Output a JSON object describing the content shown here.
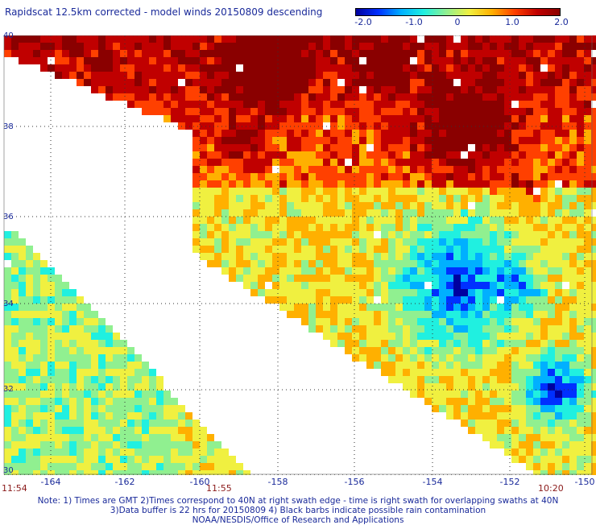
{
  "title": "Rapidscat 12.5km corrected - model winds 20150809 descending",
  "colorbar": {
    "labels": [
      "-2.0",
      "-1.0",
      "0",
      "1.0",
      "2.0"
    ],
    "colors": [
      "#0000a0",
      "#0030ff",
      "#00b0ff",
      "#20f0e0",
      "#90f090",
      "#f0f040",
      "#ffb000",
      "#ff4000",
      "#c00000",
      "#8a0000"
    ]
  },
  "lat_labels": [
    "40",
    "38",
    "36",
    "34",
    "32",
    "30"
  ],
  "lon_labels": [
    "-164",
    "-162",
    "-160",
    "-158",
    "-156",
    "-154",
    "-152",
    "-150"
  ],
  "time_labels": {
    "left": "11:54",
    "middle": "11:55",
    "right": "10:20"
  },
  "notes": [
    "Note: 1) Times are GMT 2)Times correspond to 40N at right swath edge - time is right swath for overlapping swaths at 40N",
    "3)Data buffer is 22 hrs for 20150809 4) Black barbs indicate possible rain contamination",
    "NOAA/NESDIS/Office of Research and Applications"
  ],
  "map": {
    "lat_range": [
      30,
      40
    ],
    "lon_range": [
      -165,
      -150
    ],
    "grid": "dotted"
  }
}
